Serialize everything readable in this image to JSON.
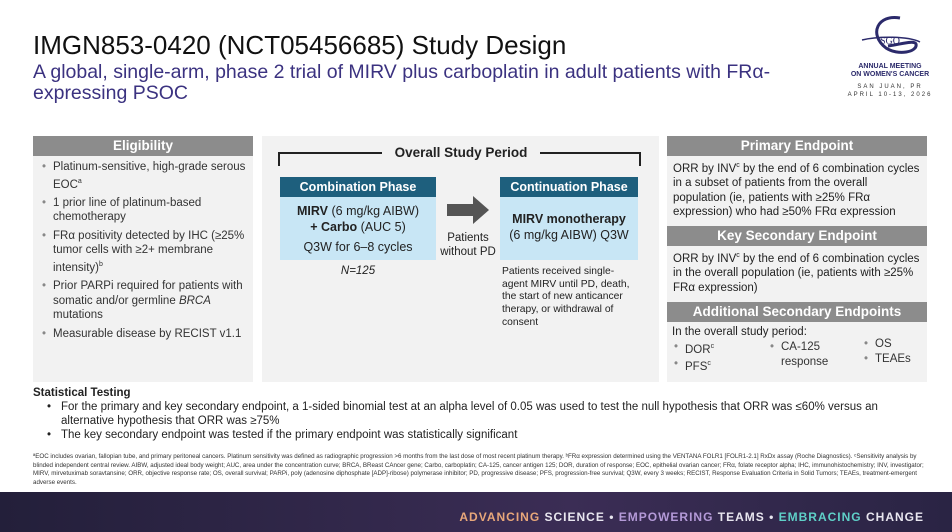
{
  "header": {
    "title": "IMGN853-0420 (NCT05456685) Study Design",
    "subtitle": "A global, single-arm, phase 2 trial of MIRV plus carboplatin in adult patients with FRα-expressing PSOC"
  },
  "logo": {
    "org": "SGO",
    "line1": "ANNUAL MEETING",
    "line2": "ON WOMEN'S CANCER",
    "location": "SAN JUAN, PR",
    "dates": "APRIL 10-13, 2026"
  },
  "eligibility": {
    "title": "Eligibility",
    "items": [
      {
        "text": "Platinum-sensitive, high-grade serous EOC",
        "sup": "a"
      },
      {
        "text": "1 prior line of platinum-based chemotherapy",
        "sup": ""
      },
      {
        "text": "FRα positivity detected by IHC (≥25% tumor cells with ≥2+ membrane intensity)",
        "sup": "b"
      },
      {
        "text": "Prior PARPi required for patients with somatic and/or germline",
        "italic": "BRCA",
        "tail": " mutations"
      },
      {
        "text": "Measurable disease by RECIST v1.1",
        "sup": ""
      }
    ]
  },
  "study": {
    "period": "Overall Study Period",
    "combination": {
      "title": "Combination Phase",
      "drug1": "MIRV",
      "dose1": " (6 mg/kg AIBW)",
      "drug2": "+ Carbo",
      "dose2": " (AUC 5)",
      "schedule": "Q3W for 6–8 cycles",
      "n": "N=125"
    },
    "transition": "Patients without PD",
    "continuation": {
      "title": "Continuation Phase",
      "drug": "MIRV monotherapy",
      "dose": "(6 mg/kg AIBW) Q3W",
      "note": "Patients received single-agent MIRV until PD, death, the start of new anticancer therapy, or withdrawal of consent"
    }
  },
  "endpoints": {
    "primary": {
      "title": "Primary Endpoint",
      "text_a": "ORR by INV",
      "sup": "c",
      "text_b": " by the end of 6 combination cycles in a subset of patients from the overall population (ie, patients with ≥25% FRα expression) who had ≥50% FRα expression"
    },
    "key_secondary": {
      "title": "Key Secondary Endpoint",
      "text_a": "ORR by INV",
      "sup": "c",
      "text_b": " by the end of 6 combination cycles in the overall population (ie, patients with ≥25% FRα expression)"
    },
    "additional": {
      "title": "Additional Secondary Endpoints",
      "intro": "In the overall study period:",
      "col1": [
        "DOR",
        "PFS"
      ],
      "sup": "c",
      "col2": "CA-125 response",
      "col3": [
        "OS",
        "TEAEs"
      ]
    }
  },
  "stats": {
    "title": "Statistical Testing",
    "items": [
      "For the primary and key secondary endpoint, a 1-sided binomial test at an alpha level of 0.05 was used to test the null hypothesis that ORR was ≤60% versus an alternative hypothesis that ORR was ≥75%",
      "The key secondary endpoint was tested if the primary endpoint was statistically significant"
    ]
  },
  "footnote": "ªEOC includes ovarian, fallopian tube, and primary peritoneal cancers. Platinum sensitivity was defined as radiographic progression >6 months from the last dose of most recent platinum therapy. ᵇFRα expression determined using the VENTANA FOLR1 [FOLR1-2.1] RxDx assay (Roche Diagnostics). ᶜSensitivity analysis by blinded independent central review. AIBW, adjusted ideal body weight; AUC, area under the concentration curve; BRCA, BReast CAncer gene; Carbo, carboplatin; CA-125, cancer antigen 125; DOR, duration of response; EOC, epithelial ovarian cancer; FRα, folate receptor alpha; IHC, immunohistochemistry; INV, investigator; MIRV, mirvetuximab soravtansine; ORR, objective response rate; OS, overall survival; PARPi, poly (adenosine diphosphate [ADP]-ribose) polymerase inhibitor; PD, progressive disease; PFS, progression-free survival; Q3W, every 3 weeks; RECIST, Response Evaluation Criteria in Solid Tumors; TEAEs, treatment-emergent adverse events.",
  "banner": {
    "w1": "ADVANCING",
    "w2": "SCIENCE",
    "w3": "EMPOWERING",
    "w4": "TEAMS",
    "w5": "EMBRACING",
    "w6": "CHANGE",
    "sep": "•",
    "c1": "#e8a77a",
    "c2": "#b49ad8",
    "c3": "#5fd0c8"
  }
}
